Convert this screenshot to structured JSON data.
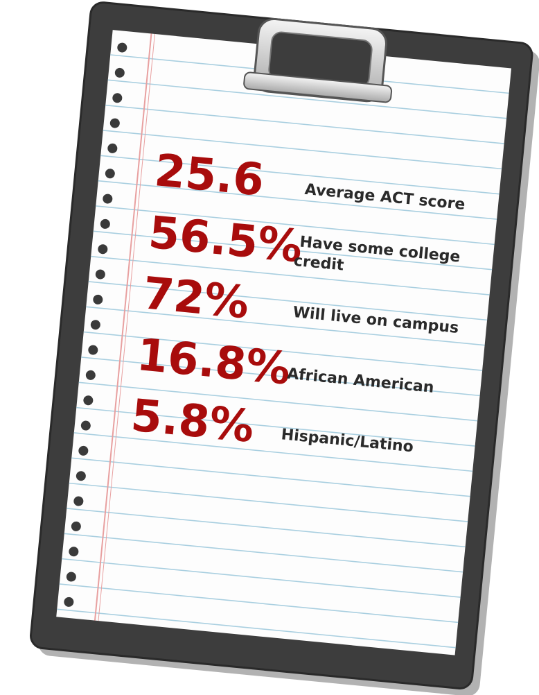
{
  "stats": [
    {
      "value": "25.6",
      "label": "Average ACT score"
    },
    {
      "value": "56.5%",
      "label": "Have some college credit"
    },
    {
      "value": "72%",
      "label": "Will live on campus"
    },
    {
      "value": "16.8%",
      "label": "African American"
    },
    {
      "value": "5.8%",
      "label": "Hispanic/Latino"
    }
  ]
}
